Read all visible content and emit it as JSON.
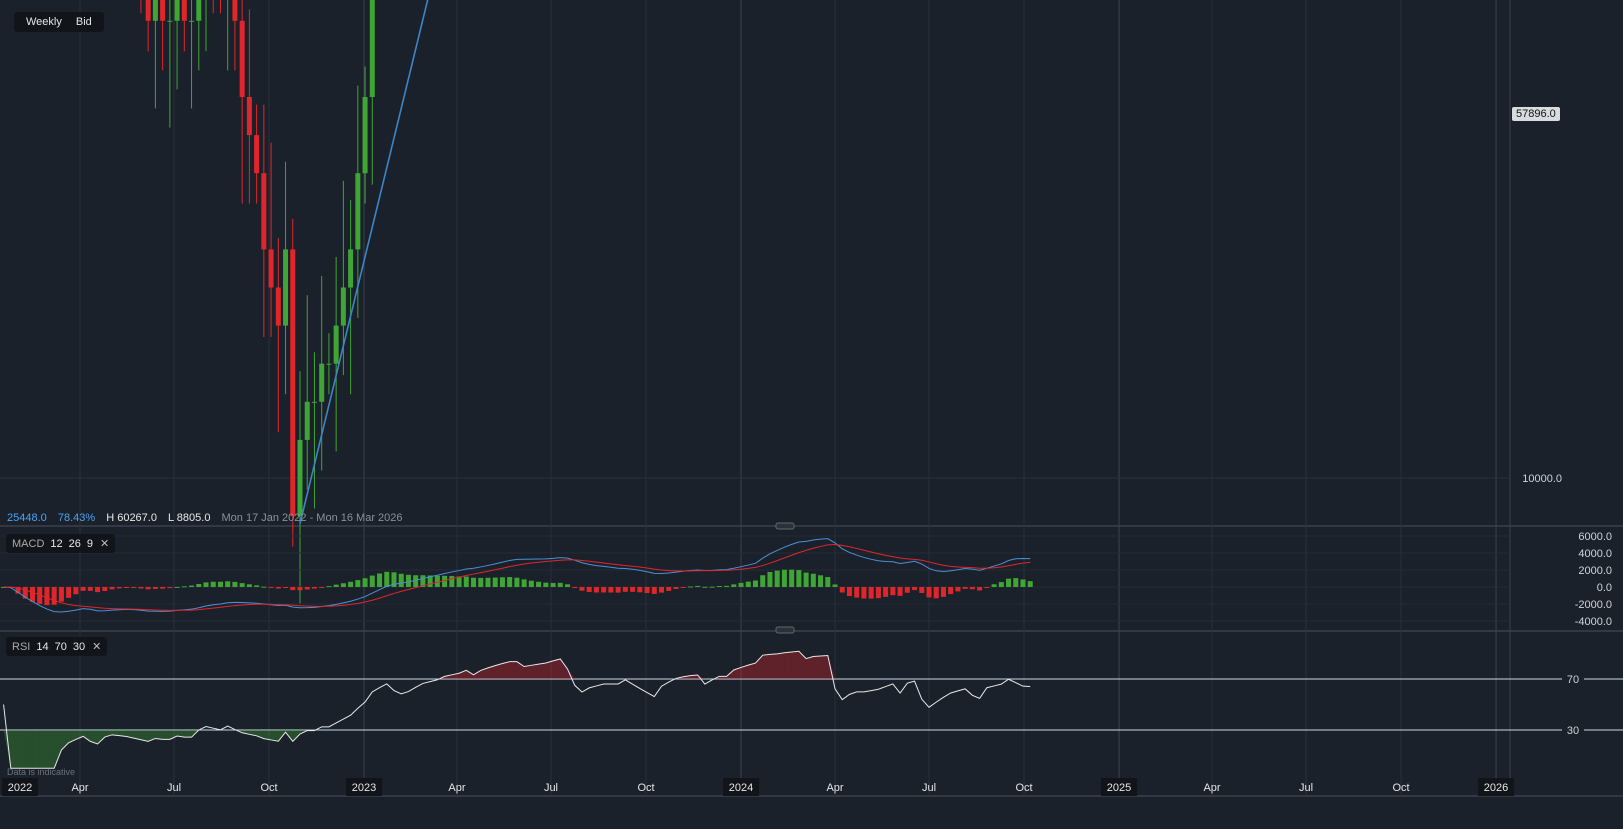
{
  "toolbar": {
    "interval": "Weekly",
    "price_type": "Bid"
  },
  "info": {
    "last": "25448.0",
    "change_pct": "78.43%",
    "high": "H 60267.0",
    "low": "L 8805.0",
    "range": "Mon 17 Jan 2022 - Mon 16 Mar 2026"
  },
  "current_price": "57896.0",
  "macd": {
    "label": "MACD",
    "fast": "12",
    "slow": "26",
    "signal": "9",
    "close": "✕",
    "ticks": [
      "6000.0",
      "4000.0",
      "2000.0",
      "0.0",
      "-2000.0",
      "-4000.0"
    ]
  },
  "rsi": {
    "label": "RSI",
    "period": "14",
    "upper": "70",
    "lower": "30",
    "close": "✕",
    "ticks": [
      "70",
      "30"
    ]
  },
  "footer_note": "Data is indicative",
  "colors": {
    "up": "#3fa535",
    "down": "#e0262a",
    "channel": "#3d85c6",
    "macd": "#4a90d9",
    "signal": "#e0262a",
    "background": "#1b212b",
    "arrow": "#2ecc2e"
  },
  "chart_data": {
    "type": "candlestick",
    "interval": "weekly",
    "start": "2022-01-17",
    "y_ticks": [
      "70000.0",
      "60000.0",
      "50000.0",
      "40000.0",
      "30000.0",
      "20000.0",
      "10000.0"
    ],
    "ylim": [
      10000,
      70000
    ],
    "x_ticks": [
      {
        "label": "2022",
        "date": "2022-01-01",
        "year": true
      },
      {
        "label": "Apr",
        "date": "2022-04-01"
      },
      {
        "label": "Jul",
        "date": "2022-07-01"
      },
      {
        "label": "Oct",
        "date": "2022-10-01"
      },
      {
        "label": "2023",
        "date": "2023-01-01",
        "year": true
      },
      {
        "label": "Apr",
        "date": "2023-04-01"
      },
      {
        "label": "Jul",
        "date": "2023-07-01"
      },
      {
        "label": "Oct",
        "date": "2023-10-01"
      },
      {
        "label": "2024",
        "date": "2024-01-01",
        "year": true
      },
      {
        "label": "Apr",
        "date": "2024-04-01"
      },
      {
        "label": "Jul",
        "date": "2024-07-01"
      },
      {
        "label": "Oct",
        "date": "2024-10-01"
      },
      {
        "label": "2025",
        "date": "2025-01-01",
        "year": true
      },
      {
        "label": "Apr",
        "date": "2025-04-01"
      },
      {
        "label": "Jul",
        "date": "2025-07-01"
      },
      {
        "label": "Oct",
        "date": "2025-10-01"
      },
      {
        "label": "2026",
        "date": "2026-01-01",
        "year": true
      }
    ],
    "first_open": 32000,
    "closes": [
      31000,
      30000,
      24000,
      22000,
      21000,
      20000,
      19000,
      19000,
      21000,
      22000,
      22500,
      23000,
      20000,
      18000,
      19500,
      20000,
      19500,
      19000,
      18000,
      17000,
      16000,
      16500,
      16000,
      16000,
      16500,
      16000,
      16000,
      17000,
      17500,
      17000,
      16500,
      17000,
      16000,
      15000,
      14500,
      14000,
      13000,
      12500,
      12000,
      13000,
      9500,
      10500,
      11000,
      11000,
      11500,
      11500,
      12000,
      12500,
      13000,
      14000,
      15000,
      17000,
      18000,
      19000,
      18000,
      17500,
      18000,
      19000,
      20000,
      20500,
      21000,
      22000,
      22500,
      23000,
      24000,
      23500,
      25000,
      26000,
      27000,
      28000,
      29000,
      29000,
      28500,
      29000,
      29500,
      30000,
      31000,
      32000,
      31000,
      29000,
      28000,
      29000,
      29500,
      30000,
      30000,
      30000,
      31000,
      30500,
      30000,
      29500,
      29000,
      31000,
      32000,
      33000,
      33500,
      33800,
      34000,
      33000,
      34000,
      35000,
      35000,
      37000,
      38000,
      39000,
      40000,
      46000,
      47000,
      47500,
      49000,
      50000,
      51000,
      50000,
      52000,
      52500,
      53000,
      47000,
      44000,
      46000,
      47000,
      47000,
      47500,
      48000,
      49000,
      50000,
      48000,
      52000,
      53000,
      48000,
      45000,
      47000,
      49000,
      51000,
      52000,
      53000,
      51000,
      50000,
      55000,
      56000,
      57000,
      60000,
      59000,
      58000,
      57896
    ],
    "annotations": {
      "channel_upper": [
        {
          "date": "2022-03-28",
          "price": 23300
        },
        {
          "date": "2024-11-25",
          "price": 64000
        }
      ],
      "channel_lower": [
        {
          "date": "2022-10-31",
          "price": 9400
        },
        {
          "date": "2024-12-23",
          "price": 53000
        }
      ],
      "resistance_1": [
        {
          "date": "2023-07-17",
          "price": 33500
        },
        {
          "date": "2023-12-18",
          "price": 33500
        }
      ],
      "resistance_2": [
        {
          "date": "2024-04-08",
          "price": 53200
        },
        {
          "date": "2024-12-23",
          "price": 53800
        }
      ],
      "boxes": [
        {
          "from": "2023-02-13",
          "to": "2023-03-06",
          "top": 19200,
          "bottom": 16900
        },
        {
          "from": "2023-07-24",
          "to": "2023-08-14",
          "top": 32000,
          "bottom": 27400
        },
        {
          "from": "2024-04-15",
          "to": "2024-05-06",
          "top": 53000,
          "bottom": 40500
        },
        {
          "from": "2024-07-15",
          "to": "2024-08-05",
          "top": 54500,
          "bottom": 45000
        }
      ],
      "arrow": {
        "date": "2024-10-14",
        "price": 61500
      }
    }
  }
}
